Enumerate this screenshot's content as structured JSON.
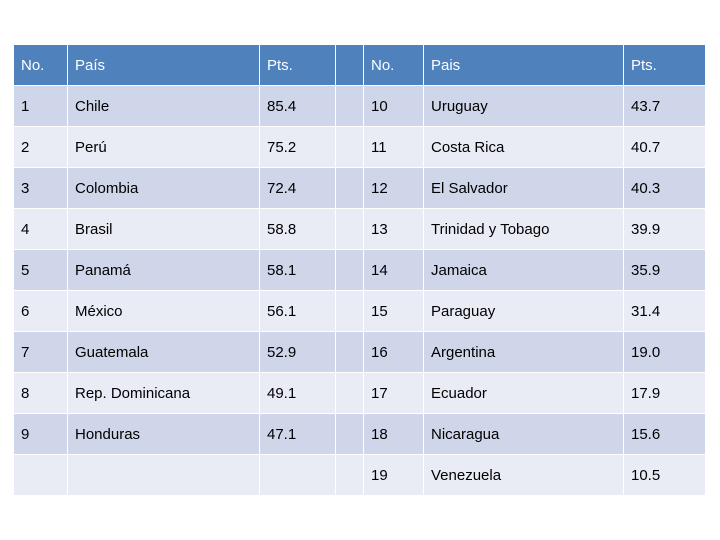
{
  "table": {
    "header": [
      "No.",
      "País",
      "Pts.",
      "No.",
      "Pais",
      "Pts."
    ],
    "left": [
      [
        "1",
        "Chile",
        "85.4"
      ],
      [
        "2",
        "Perú",
        "75.2"
      ],
      [
        "3",
        "Colombia",
        "72.4"
      ],
      [
        "4",
        "Brasil",
        "58.8"
      ],
      [
        "5",
        "Panamá",
        "58.1"
      ],
      [
        "6",
        "México",
        "56.1"
      ],
      [
        "7",
        "Guatemala",
        "52.9"
      ],
      [
        "8",
        "Rep. Dominicana",
        "49.1"
      ],
      [
        "9",
        "Honduras",
        "47.1"
      ]
    ],
    "right": [
      [
        "10",
        "Uruguay",
        "43.7"
      ],
      [
        "11",
        "Costa Rica",
        "40.7"
      ],
      [
        "12",
        "El Salvador",
        "40.3"
      ],
      [
        "13",
        "Trinidad y Tobago",
        "39.9"
      ],
      [
        "14",
        "Jamaica",
        "35.9"
      ],
      [
        "15",
        "Paraguay",
        "31.4"
      ],
      [
        "16",
        "Argentina",
        "19.0"
      ],
      [
        "17",
        "Ecuador",
        "17.9"
      ],
      [
        "18",
        "Nicaragua",
        "15.6"
      ],
      [
        "19",
        "Venezuela",
        "10.5"
      ]
    ]
  }
}
